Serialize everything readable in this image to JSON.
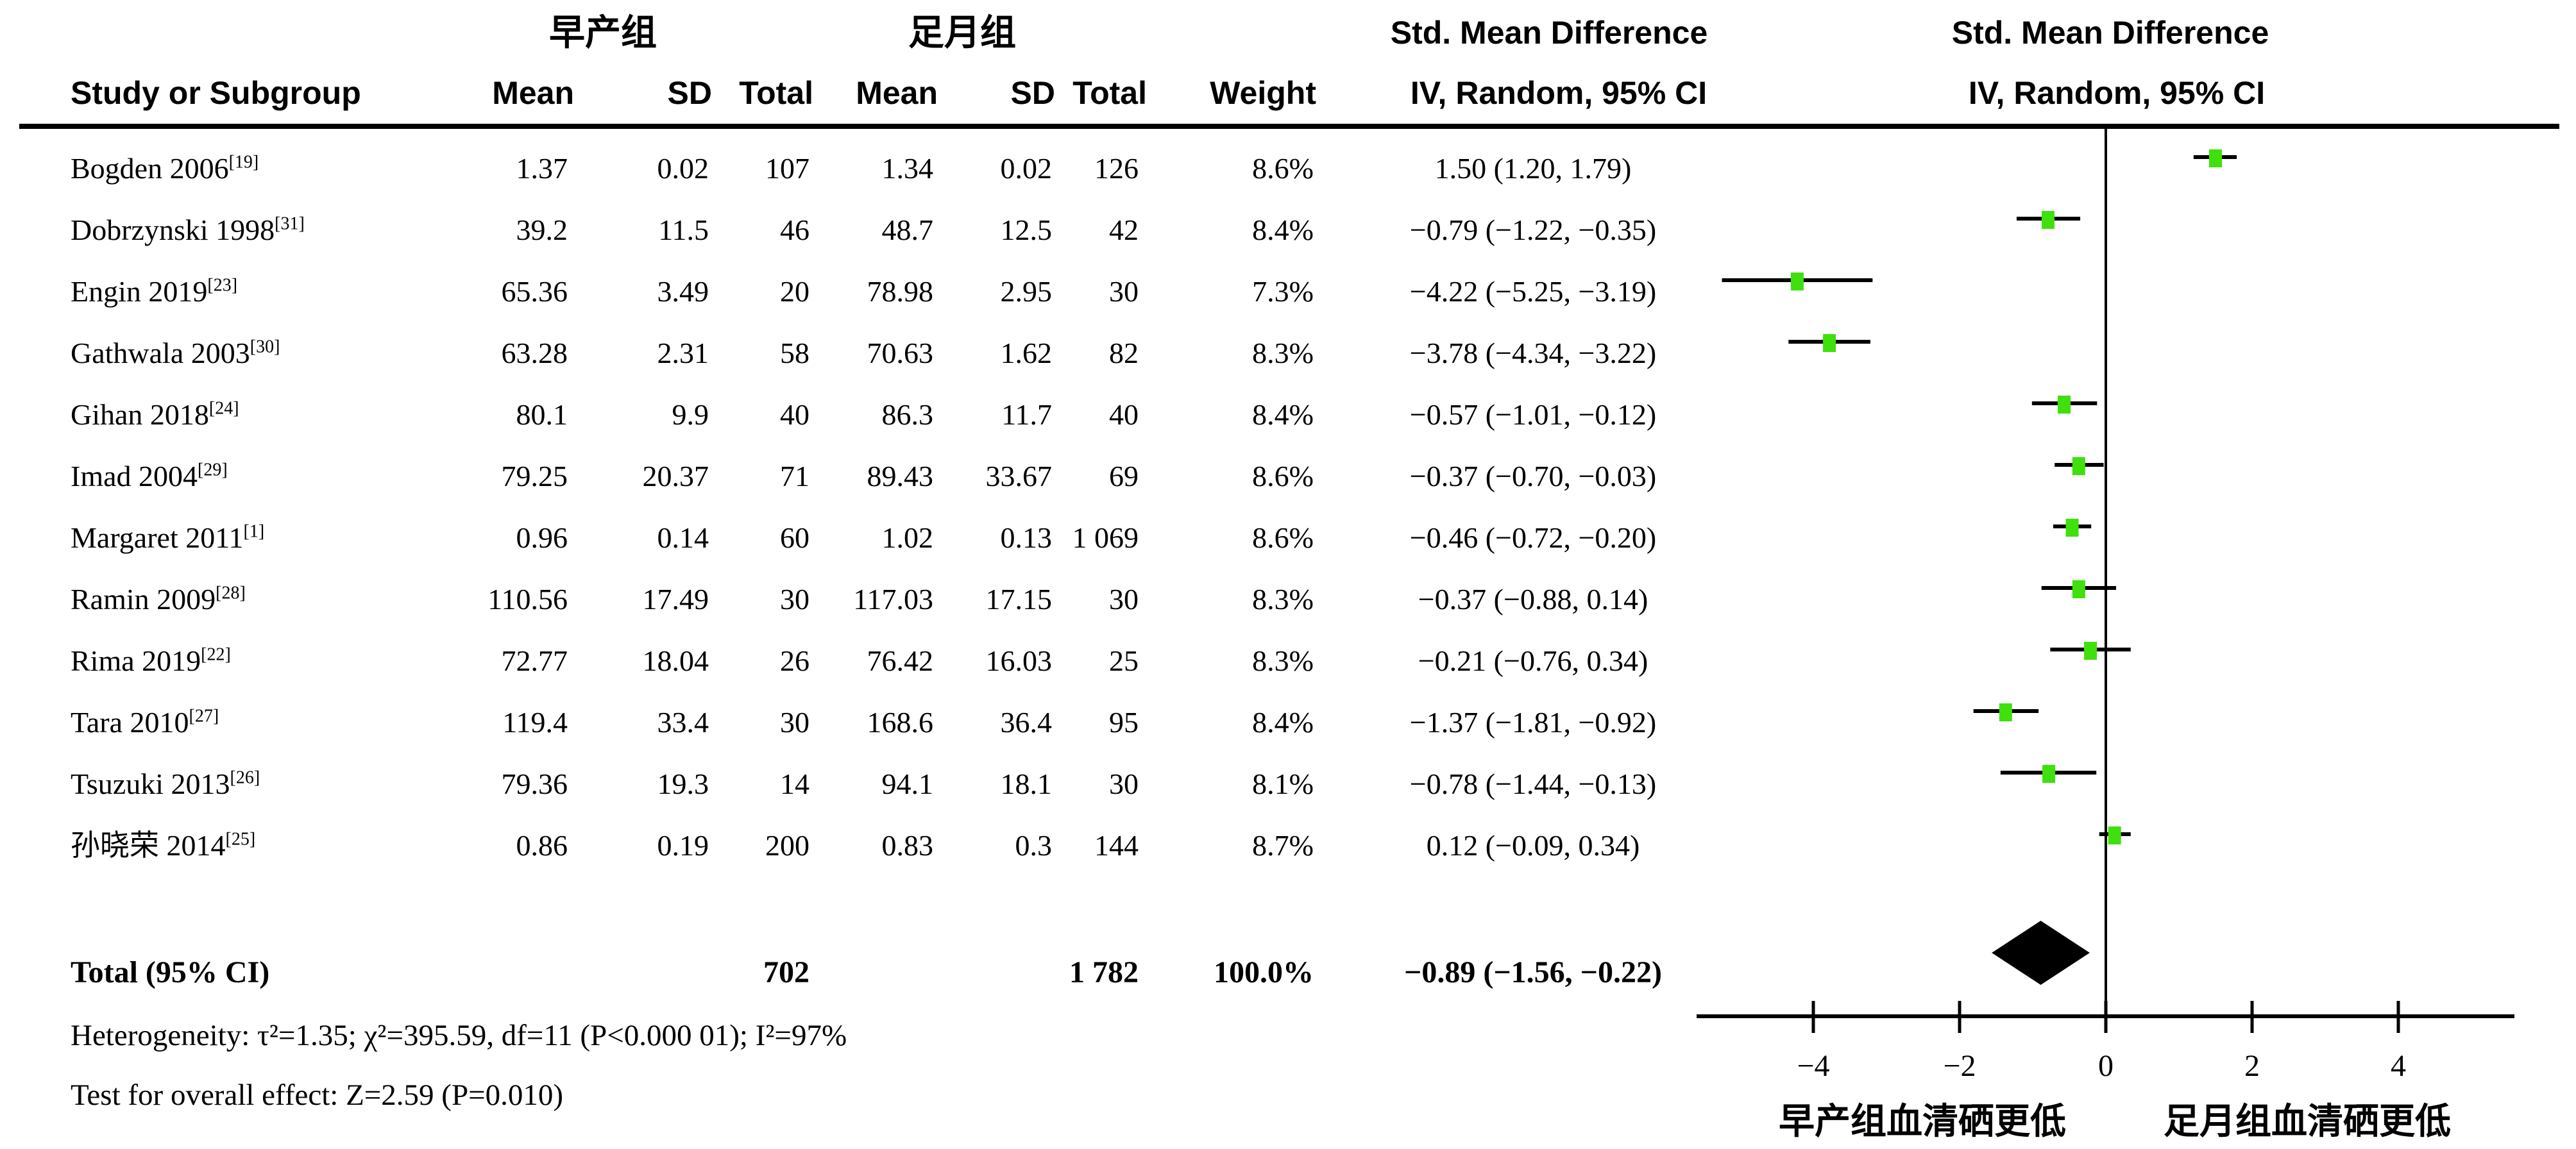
{
  "header": {
    "group1": "早产组",
    "group2": "足月组",
    "smd_title": "Std. Mean Difference",
    "method": "IV, Random, 95% CI",
    "study": "Study or Subgroup",
    "mean": "Mean",
    "sd": "SD",
    "total": "Total",
    "weight": "Weight"
  },
  "studies": [
    {
      "name": "Bogden 2006",
      "ref": "[19]",
      "mean1": "1.37",
      "sd1": "0.02",
      "total1": "107",
      "mean2": "1.34",
      "sd2": "0.02",
      "total2": "126",
      "weight": "8.6%",
      "ci": "1.50 (1.20, 1.79)",
      "est": 1.5,
      "lo": 1.2,
      "hi": 1.79
    },
    {
      "name": "Dobrzynski 1998",
      "ref": "[31]",
      "mean1": "39.2",
      "sd1": "11.5",
      "total1": "46",
      "mean2": "48.7",
      "sd2": "12.5",
      "total2": "42",
      "weight": "8.4%",
      "ci": "−0.79 (−1.22, −0.35)",
      "est": -0.79,
      "lo": -1.22,
      "hi": -0.35
    },
    {
      "name": "Engin 2019",
      "ref": "[23]",
      "mean1": "65.36",
      "sd1": "3.49",
      "total1": "20",
      "mean2": "78.98",
      "sd2": "2.95",
      "total2": "30",
      "weight": "7.3%",
      "ci": "−4.22 (−5.25, −3.19)",
      "est": -4.22,
      "lo": -5.25,
      "hi": -3.19
    },
    {
      "name": "Gathwala 2003",
      "ref": "[30]",
      "mean1": "63.28",
      "sd1": "2.31",
      "total1": "58",
      "mean2": "70.63",
      "sd2": "1.62",
      "total2": "82",
      "weight": "8.3%",
      "ci": "−3.78 (−4.34, −3.22)",
      "est": -3.78,
      "lo": -4.34,
      "hi": -3.22
    },
    {
      "name": "Gihan 2018",
      "ref": "[24]",
      "mean1": "80.1",
      "sd1": "9.9",
      "total1": "40",
      "mean2": "86.3",
      "sd2": "11.7",
      "total2": "40",
      "weight": "8.4%",
      "ci": "−0.57 (−1.01, −0.12)",
      "est": -0.57,
      "lo": -1.01,
      "hi": -0.12
    },
    {
      "name": "Imad 2004",
      "ref": "[29]",
      "mean1": "79.25",
      "sd1": "20.37",
      "total1": "71",
      "mean2": "89.43",
      "sd2": "33.67",
      "total2": "69",
      "weight": "8.6%",
      "ci": "−0.37 (−0.70, −0.03)",
      "est": -0.37,
      "lo": -0.7,
      "hi": -0.03
    },
    {
      "name": "Margaret 2011",
      "ref": "[1]",
      "mean1": "0.96",
      "sd1": "0.14",
      "total1": "60",
      "mean2": "1.02",
      "sd2": "0.13",
      "total2": "1 069",
      "weight": "8.6%",
      "ci": "−0.46 (−0.72, −0.20)",
      "est": -0.46,
      "lo": -0.72,
      "hi": -0.2
    },
    {
      "name": "Ramin 2009",
      "ref": "[28]",
      "mean1": "110.56",
      "sd1": "17.49",
      "total1": "30",
      "mean2": "117.03",
      "sd2": "17.15",
      "total2": "30",
      "weight": "8.3%",
      "ci": "−0.37 (−0.88, 0.14)",
      "est": -0.37,
      "lo": -0.88,
      "hi": 0.14
    },
    {
      "name": "Rima 2019",
      "ref": "[22]",
      "mean1": "72.77",
      "sd1": "18.04",
      "total1": "26",
      "mean2": "76.42",
      "sd2": "16.03",
      "total2": "25",
      "weight": "8.3%",
      "ci": "−0.21 (−0.76, 0.34)",
      "est": -0.21,
      "lo": -0.76,
      "hi": 0.34
    },
    {
      "name": "Tara 2010",
      "ref": "[27]",
      "mean1": "119.4",
      "sd1": "33.4",
      "total1": "30",
      "mean2": "168.6",
      "sd2": "36.4",
      "total2": "95",
      "weight": "8.4%",
      "ci": "−1.37 (−1.81, −0.92)",
      "est": -1.37,
      "lo": -1.81,
      "hi": -0.92
    },
    {
      "name": "Tsuzuki 2013",
      "ref": "[26]",
      "mean1": "79.36",
      "sd1": "19.3",
      "total1": "14",
      "mean2": "94.1",
      "sd2": "18.1",
      "total2": "30",
      "weight": "8.1%",
      "ci": "−0.78 (−1.44, −0.13)",
      "est": -0.78,
      "lo": -1.44,
      "hi": -0.13
    },
    {
      "name": "孙晓荣 2014",
      "ref": "[25]",
      "mean1": "0.86",
      "sd1": "0.19",
      "total1": "200",
      "mean2": "0.83",
      "sd2": "0.3",
      "total2": "144",
      "weight": "8.7%",
      "ci": "0.12 (−0.09, 0.34)",
      "est": 0.12,
      "lo": -0.09,
      "hi": 0.34
    }
  ],
  "total_row": {
    "label": "Total (95% CI)",
    "total1": "702",
    "total2": "1 782",
    "weight": "100.0%",
    "ci": "−0.89 (−1.56, −0.22)",
    "est": -0.89,
    "lo": -1.56,
    "hi": -0.22
  },
  "footer": {
    "heterogeneity": "Heterogeneity: τ²=1.35; χ²=395.59, df=11 (P<0.000 01); I²=97%",
    "overall": "Test for overall effect: Z=2.59 (P=0.010)"
  },
  "chart_data": {
    "type": "forest",
    "x_ticks": [
      -4,
      -2,
      0,
      2,
      4
    ],
    "x_tick_labels": [
      "−4",
      "−2",
      "0",
      "2",
      "4"
    ],
    "zero_value": 0,
    "xlabel_left": "早产组血清硒更低",
    "xlabel_right": "足月组血清硒更低",
    "marker_color": "#3fe00e",
    "line_color": "#000000",
    "diamond_color": "#000000",
    "series": [
      {
        "name": "Bogden 2006",
        "est": 1.5,
        "lo": 1.2,
        "hi": 1.79
      },
      {
        "name": "Dobrzynski 1998",
        "est": -0.79,
        "lo": -1.22,
        "hi": -0.35
      },
      {
        "name": "Engin 2019",
        "est": -4.22,
        "lo": -5.25,
        "hi": -3.19
      },
      {
        "name": "Gathwala 2003",
        "est": -3.78,
        "lo": -4.34,
        "hi": -3.22
      },
      {
        "name": "Gihan 2018",
        "est": -0.57,
        "lo": -1.01,
        "hi": -0.12
      },
      {
        "name": "Imad 2004",
        "est": -0.37,
        "lo": -0.7,
        "hi": -0.03
      },
      {
        "name": "Margaret 2011",
        "est": -0.46,
        "lo": -0.72,
        "hi": -0.2
      },
      {
        "name": "Ramin 2009",
        "est": -0.37,
        "lo": -0.88,
        "hi": 0.14
      },
      {
        "name": "Rima 2019",
        "est": -0.21,
        "lo": -0.76,
        "hi": 0.34
      },
      {
        "name": "Tara 2010",
        "est": -1.37,
        "lo": -1.81,
        "hi": -0.92
      },
      {
        "name": "Tsuzuki 2013",
        "est": -0.78,
        "lo": -1.44,
        "hi": -0.13
      },
      {
        "name": "孙晓荣 2014",
        "est": 0.12,
        "lo": -0.09,
        "hi": 0.34
      }
    ],
    "total": {
      "name": "Total (95% CI)",
      "est": -0.89,
      "lo": -1.56,
      "hi": -0.22
    }
  }
}
